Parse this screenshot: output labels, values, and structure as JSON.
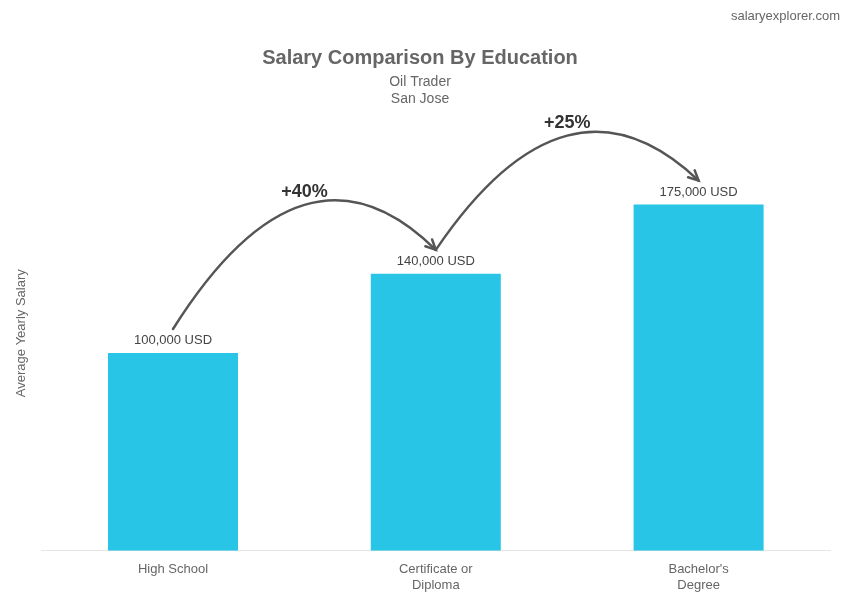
{
  "chart_data": {
    "type": "bar",
    "title": "Salary Comparison By Education",
    "subtitle": [
      "Oil Trader",
      "San Jose"
    ],
    "categories": [
      "High School",
      "Certificate or\nDiploma",
      "Bachelor's\nDegree"
    ],
    "values": [
      100000,
      140000,
      175000
    ],
    "value_labels": [
      "100,000 USD",
      "140,000 USD",
      "175,000 USD"
    ],
    "data_labels": true,
    "color": "#29c5e6",
    "ylabel": "Average Yearly Salary",
    "ylim": [
      0,
      220000
    ],
    "grid": false,
    "tick_labels": "x",
    "annotations": [
      {
        "text": "+40%",
        "from": "High School",
        "to": "Certificate or\nDiploma"
      },
      {
        "text": "+25%",
        "from": "Certificate or\nDiploma",
        "to": "Bachelor's\nDegree"
      },
      {
        "text": "salaryexplorer.com"
      }
    ]
  }
}
